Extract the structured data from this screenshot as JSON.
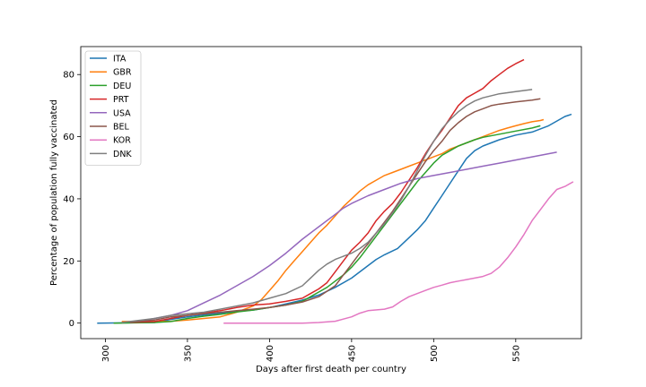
{
  "chart_data": {
    "type": "line",
    "xlabel": "Days after first death per country",
    "ylabel": "Percentage of population fully vaccinated",
    "xlim": [
      285,
      590
    ],
    "ylim": [
      -5,
      89
    ],
    "x_ticks": [
      300,
      350,
      400,
      450,
      500,
      550
    ],
    "y_ticks": [
      0,
      20,
      40,
      60,
      80
    ],
    "x_tick_rotation": 90,
    "grid": false,
    "legend_position": "top-left",
    "series": [
      {
        "name": "ITA",
        "color": "#1f77b4",
        "points": [
          [
            295,
            0
          ],
          [
            330,
            0.2
          ],
          [
            340,
            1.2
          ],
          [
            350,
            2.0
          ],
          [
            360,
            2.6
          ],
          [
            370,
            3.2
          ],
          [
            380,
            3.8
          ],
          [
            390,
            4.2
          ],
          [
            400,
            5.0
          ],
          [
            410,
            6.2
          ],
          [
            420,
            7.4
          ],
          [
            430,
            9.0
          ],
          [
            440,
            11.5
          ],
          [
            450,
            14.5
          ],
          [
            460,
            18.5
          ],
          [
            465,
            20.5
          ],
          [
            470,
            22.0
          ],
          [
            478,
            24.0
          ],
          [
            485,
            27.5
          ],
          [
            490,
            30.0
          ],
          [
            495,
            33.0
          ],
          [
            500,
            37.0
          ],
          [
            505,
            41.0
          ],
          [
            510,
            45.0
          ],
          [
            515,
            49.0
          ],
          [
            520,
            53.0
          ],
          [
            525,
            55.5
          ],
          [
            530,
            57.0
          ],
          [
            540,
            59.0
          ],
          [
            550,
            60.5
          ],
          [
            560,
            61.5
          ],
          [
            570,
            63.5
          ],
          [
            580,
            66.5
          ],
          [
            584,
            67.2
          ]
        ]
      },
      {
        "name": "GBR",
        "color": "#ff7f0e",
        "points": [
          [
            310,
            0.5
          ],
          [
            320,
            0.5
          ],
          [
            330,
            0.5
          ],
          [
            340,
            0.6
          ],
          [
            350,
            1.0
          ],
          [
            360,
            1.5
          ],
          [
            370,
            2.0
          ],
          [
            380,
            3.5
          ],
          [
            390,
            5.5
          ],
          [
            395,
            7.5
          ],
          [
            400,
            10.5
          ],
          [
            405,
            13.5
          ],
          [
            410,
            17.0
          ],
          [
            415,
            20.0
          ],
          [
            420,
            23.0
          ],
          [
            425,
            26.0
          ],
          [
            430,
            29.0
          ],
          [
            435,
            31.5
          ],
          [
            440,
            34.5
          ],
          [
            445,
            37.5
          ],
          [
            450,
            40.0
          ],
          [
            455,
            42.5
          ],
          [
            460,
            44.5
          ],
          [
            465,
            46.0
          ],
          [
            470,
            47.5
          ],
          [
            475,
            48.5
          ],
          [
            480,
            49.5
          ],
          [
            485,
            50.5
          ],
          [
            490,
            51.5
          ],
          [
            495,
            52.5
          ],
          [
            500,
            53.5
          ],
          [
            505,
            54.5
          ],
          [
            510,
            56.0
          ],
          [
            515,
            57.0
          ],
          [
            520,
            58.0
          ],
          [
            525,
            59.0
          ],
          [
            530,
            60.0
          ],
          [
            535,
            61.0
          ],
          [
            540,
            62.0
          ],
          [
            545,
            62.8
          ],
          [
            550,
            63.5
          ],
          [
            555,
            64.2
          ],
          [
            560,
            64.8
          ],
          [
            565,
            65.2
          ],
          [
            567,
            65.5
          ]
        ]
      },
      {
        "name": "DEU",
        "color": "#2ca02c",
        "points": [
          [
            305,
            0
          ],
          [
            330,
            0.2
          ],
          [
            340,
            0.5
          ],
          [
            350,
            1.5
          ],
          [
            360,
            2.2
          ],
          [
            370,
            2.8
          ],
          [
            380,
            3.6
          ],
          [
            390,
            4.2
          ],
          [
            400,
            5.0
          ],
          [
            410,
            5.8
          ],
          [
            420,
            7.0
          ],
          [
            425,
            8.5
          ],
          [
            430,
            10.0
          ],
          [
            435,
            11.5
          ],
          [
            440,
            13.5
          ],
          [
            445,
            15.5
          ],
          [
            450,
            18.0
          ],
          [
            455,
            21.0
          ],
          [
            460,
            24.5
          ],
          [
            465,
            28.0
          ],
          [
            470,
            31.5
          ],
          [
            475,
            35.0
          ],
          [
            480,
            38.5
          ],
          [
            485,
            42.0
          ],
          [
            490,
            45.5
          ],
          [
            495,
            48.5
          ],
          [
            500,
            51.5
          ],
          [
            505,
            54.0
          ],
          [
            510,
            55.5
          ],
          [
            515,
            57.0
          ],
          [
            520,
            58.0
          ],
          [
            525,
            59.0
          ],
          [
            530,
            59.8
          ],
          [
            540,
            60.8
          ],
          [
            550,
            61.8
          ],
          [
            560,
            62.8
          ],
          [
            565,
            63.5
          ]
        ]
      },
      {
        "name": "PRT",
        "color": "#d62728",
        "points": [
          [
            315,
            0.2
          ],
          [
            330,
            0.5
          ],
          [
            340,
            1.5
          ],
          [
            350,
            2.5
          ],
          [
            360,
            3.2
          ],
          [
            370,
            4.0
          ],
          [
            380,
            5.0
          ],
          [
            390,
            5.8
          ],
          [
            400,
            6.2
          ],
          [
            410,
            7.0
          ],
          [
            420,
            8.0
          ],
          [
            425,
            9.5
          ],
          [
            430,
            11.0
          ],
          [
            435,
            13.0
          ],
          [
            440,
            16.5
          ],
          [
            445,
            20.0
          ],
          [
            450,
            23.5
          ],
          [
            455,
            26.0
          ],
          [
            460,
            29.0
          ],
          [
            465,
            33.0
          ],
          [
            470,
            36.0
          ],
          [
            475,
            38.5
          ],
          [
            480,
            42.0
          ],
          [
            485,
            46.0
          ],
          [
            490,
            50.0
          ],
          [
            495,
            54.5
          ],
          [
            500,
            58.5
          ],
          [
            505,
            62.0
          ],
          [
            510,
            66.0
          ],
          [
            515,
            70.0
          ],
          [
            520,
            72.5
          ],
          [
            525,
            74.0
          ],
          [
            530,
            75.5
          ],
          [
            535,
            78.0
          ],
          [
            540,
            80.0
          ],
          [
            545,
            82.0
          ],
          [
            550,
            83.5
          ],
          [
            555,
            84.8
          ]
        ]
      },
      {
        "name": "USA",
        "color": "#9467bd",
        "points": [
          [
            320,
            0.5
          ],
          [
            330,
            1.5
          ],
          [
            340,
            2.5
          ],
          [
            350,
            4.0
          ],
          [
            360,
            6.5
          ],
          [
            370,
            9.0
          ],
          [
            380,
            12.0
          ],
          [
            390,
            15.0
          ],
          [
            400,
            18.5
          ],
          [
            410,
            22.5
          ],
          [
            420,
            27.0
          ],
          [
            430,
            31.0
          ],
          [
            440,
            35.0
          ],
          [
            445,
            37.0
          ],
          [
            450,
            38.5
          ],
          [
            460,
            41.0
          ],
          [
            470,
            43.0
          ],
          [
            480,
            45.0
          ],
          [
            490,
            46.5
          ],
          [
            500,
            47.5
          ],
          [
            510,
            48.5
          ],
          [
            520,
            49.5
          ],
          [
            530,
            50.5
          ],
          [
            540,
            51.5
          ],
          [
            550,
            52.5
          ],
          [
            560,
            53.5
          ],
          [
            570,
            54.5
          ],
          [
            575,
            55.0
          ]
        ]
      },
      {
        "name": "BEL",
        "color": "#8c564b",
        "points": [
          [
            315,
            0.2
          ],
          [
            330,
            1.0
          ],
          [
            340,
            2.0
          ],
          [
            350,
            2.5
          ],
          [
            360,
            3.0
          ],
          [
            370,
            3.5
          ],
          [
            380,
            4.0
          ],
          [
            390,
            4.5
          ],
          [
            400,
            5.0
          ],
          [
            410,
            5.8
          ],
          [
            420,
            6.8
          ],
          [
            430,
            8.5
          ],
          [
            440,
            12.0
          ],
          [
            445,
            15.5
          ],
          [
            450,
            19.0
          ],
          [
            455,
            22.5
          ],
          [
            460,
            25.5
          ],
          [
            465,
            29.0
          ],
          [
            470,
            32.5
          ],
          [
            475,
            36.0
          ],
          [
            480,
            40.0
          ],
          [
            485,
            44.0
          ],
          [
            490,
            48.0
          ],
          [
            495,
            52.0
          ],
          [
            500,
            55.5
          ],
          [
            505,
            58.5
          ],
          [
            510,
            62.0
          ],
          [
            515,
            64.5
          ],
          [
            520,
            66.5
          ],
          [
            525,
            68.0
          ],
          [
            530,
            69.0
          ],
          [
            535,
            70.0
          ],
          [
            540,
            70.5
          ],
          [
            550,
            71.2
          ],
          [
            560,
            71.8
          ],
          [
            565,
            72.2
          ]
        ]
      },
      {
        "name": "KOR",
        "color": "#e377c2",
        "points": [
          [
            372,
            0
          ],
          [
            400,
            0
          ],
          [
            420,
            0
          ],
          [
            430,
            0.2
          ],
          [
            440,
            0.6
          ],
          [
            450,
            2.0
          ],
          [
            455,
            3.2
          ],
          [
            460,
            4.0
          ],
          [
            470,
            4.5
          ],
          [
            475,
            5.2
          ],
          [
            480,
            7.0
          ],
          [
            485,
            8.5
          ],
          [
            490,
            9.5
          ],
          [
            495,
            10.5
          ],
          [
            500,
            11.5
          ],
          [
            505,
            12.2
          ],
          [
            510,
            13.0
          ],
          [
            515,
            13.5
          ],
          [
            520,
            14.0
          ],
          [
            525,
            14.5
          ],
          [
            530,
            15.0
          ],
          [
            535,
            16.0
          ],
          [
            540,
            18.0
          ],
          [
            545,
            21.0
          ],
          [
            550,
            24.5
          ],
          [
            555,
            28.5
          ],
          [
            560,
            33.0
          ],
          [
            565,
            36.5
          ],
          [
            570,
            40.0
          ],
          [
            575,
            43.0
          ],
          [
            580,
            44.0
          ],
          [
            585,
            45.5
          ]
        ]
      },
      {
        "name": "DNK",
        "color": "#7f7f7f",
        "points": [
          [
            310,
            0.2
          ],
          [
            330,
            1.5
          ],
          [
            340,
            2.5
          ],
          [
            350,
            3.0
          ],
          [
            360,
            3.5
          ],
          [
            370,
            4.5
          ],
          [
            380,
            5.5
          ],
          [
            390,
            6.5
          ],
          [
            400,
            8.0
          ],
          [
            410,
            9.5
          ],
          [
            420,
            12.0
          ],
          [
            425,
            14.5
          ],
          [
            430,
            17.0
          ],
          [
            435,
            19.0
          ],
          [
            440,
            20.5
          ],
          [
            445,
            21.5
          ],
          [
            450,
            22.5
          ],
          [
            455,
            24.0
          ],
          [
            460,
            26.0
          ],
          [
            465,
            29.0
          ],
          [
            470,
            32.0
          ],
          [
            475,
            35.5
          ],
          [
            480,
            39.5
          ],
          [
            485,
            44.0
          ],
          [
            490,
            49.0
          ],
          [
            495,
            54.0
          ],
          [
            500,
            58.5
          ],
          [
            505,
            62.5
          ],
          [
            510,
            65.5
          ],
          [
            515,
            68.0
          ],
          [
            520,
            70.0
          ],
          [
            525,
            71.5
          ],
          [
            530,
            72.5
          ],
          [
            540,
            73.8
          ],
          [
            550,
            74.5
          ],
          [
            560,
            75.2
          ]
        ]
      }
    ]
  }
}
